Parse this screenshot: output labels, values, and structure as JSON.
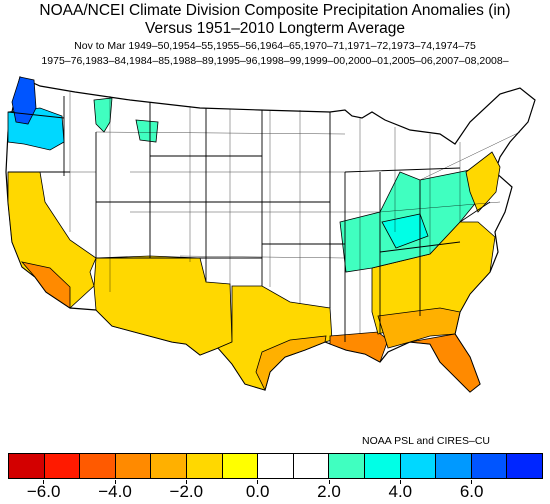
{
  "title_line1": "NOAA/NCEI Climate Division Composite Precipitation Anomalies (in)",
  "title_line2": "Versus 1951–2010 Longterm Average",
  "subtitle_line1": "Nov to Mar   1949–50,1954–55,1955–56,1964–65,1970–71,1971–72,1973–74,1974–75",
  "subtitle_line2": "1975–76,1983–84,1984–85,1988–89,1995–96,1998–99,1999–00,2000–01,2005–06,2007–08,2008–",
  "credit": "NOAA PSL and CIRES–CU",
  "colorbar": {
    "colors": [
      "#d30000",
      "#ff1a00",
      "#ff5a00",
      "#ff8a00",
      "#ffb000",
      "#ffd800",
      "#ffff00",
      "#ffffff",
      "#ffffff",
      "#40ffc0",
      "#00ffe6",
      "#00d8ff",
      "#0099ff",
      "#0055ff",
      "#0026ff"
    ],
    "tick_labels": [
      "−6.0",
      "−4.0",
      "−2.0",
      "0.0",
      "2.0",
      "4.0",
      "6.0"
    ]
  },
  "regions": [
    {
      "name": "Pacific Northwest coast",
      "color": "#0055ff"
    },
    {
      "name": "Washington / Oregon interior",
      "color": "#00d8ff"
    },
    {
      "name": "Idaho panhandle",
      "color": "#40ffc0"
    },
    {
      "name": "California",
      "color": "#ffd800"
    },
    {
      "name": "Southern California",
      "color": "#ff8a00"
    },
    {
      "name": "Arizona / New Mexico",
      "color": "#ffd800"
    },
    {
      "name": "Texas",
      "color": "#ffd800"
    },
    {
      "name": "Gulf coast",
      "color": "#ff8a00"
    },
    {
      "name": "Florida",
      "color": "#ff8a00"
    },
    {
      "name": "Southeast",
      "color": "#ffd800"
    },
    {
      "name": "Ohio Valley",
      "color": "#40ffc0"
    },
    {
      "name": "Mid-Atlantic",
      "color": "#ffd800"
    }
  ]
}
